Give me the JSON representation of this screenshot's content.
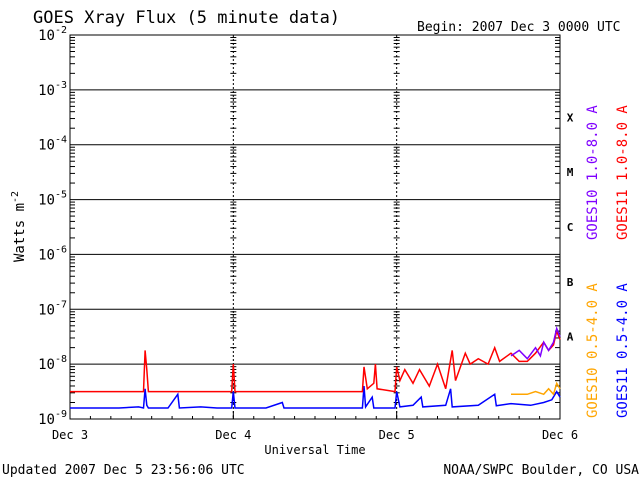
{
  "chart_data": {
    "type": "line",
    "title": "GOES Xray Flux (5 minute data)",
    "begin_label": "Begin:  2007 Dec 3 0000 UTC",
    "xlabel": "Universal Time",
    "ylabel_base": "Watts m",
    "ylabel_exp": "-2",
    "y_scale": "log",
    "ylim": [
      1e-09,
      0.01
    ],
    "xlim": [
      0,
      3
    ],
    "x_ticks": [
      {
        "value": 0,
        "label": "Dec 3"
      },
      {
        "value": 1,
        "label": "Dec 4"
      },
      {
        "value": 2,
        "label": "Dec 5"
      },
      {
        "value": 3,
        "label": "Dec 6"
      }
    ],
    "y_ticks": [
      {
        "exp": -2,
        "base": "10",
        "sup": "-2"
      },
      {
        "exp": -3,
        "base": "10",
        "sup": "-3"
      },
      {
        "exp": -4,
        "base": "10",
        "sup": "-4"
      },
      {
        "exp": -5,
        "base": "10",
        "sup": "-5"
      },
      {
        "exp": -6,
        "base": "10",
        "sup": "-6"
      },
      {
        "exp": -7,
        "base": "10",
        "sup": "-7"
      },
      {
        "exp": -8,
        "base": "10",
        "sup": "-8"
      },
      {
        "exp": -9,
        "base": "10",
        "sup": "-9"
      }
    ],
    "flare_classes": [
      {
        "label": "X",
        "exp": -3.5
      },
      {
        "label": "M",
        "exp": -4.5
      },
      {
        "label": "C",
        "exp": -5.5
      },
      {
        "label": "B",
        "exp": -6.5
      },
      {
        "label": "A",
        "exp": -7.5
      }
    ],
    "series": [
      {
        "name": "GOES11 0.5-4.0 A",
        "color": "#0000ff",
        "points": [
          [
            0,
            -8.8
          ],
          [
            0.3,
            -8.8
          ],
          [
            0.42,
            -8.78
          ],
          [
            0.45,
            -8.8
          ],
          [
            0.46,
            -8.45
          ],
          [
            0.47,
            -8.75
          ],
          [
            0.48,
            -8.8
          ],
          [
            0.6,
            -8.8
          ],
          [
            0.66,
            -8.55
          ],
          [
            0.67,
            -8.8
          ],
          [
            0.8,
            -8.78
          ],
          [
            0.9,
            -8.8
          ],
          [
            0.99,
            -8.8
          ],
          [
            1.0,
            -8.5
          ],
          [
            1.01,
            -8.8
          ],
          [
            1.2,
            -8.8
          ],
          [
            1.3,
            -8.7
          ],
          [
            1.31,
            -8.8
          ],
          [
            1.6,
            -8.8
          ],
          [
            1.79,
            -8.8
          ],
          [
            1.8,
            -8.4
          ],
          [
            1.81,
            -8.78
          ],
          [
            1.85,
            -8.6
          ],
          [
            1.86,
            -8.8
          ],
          [
            1.99,
            -8.8
          ],
          [
            2.0,
            -8.5
          ],
          [
            2.02,
            -8.78
          ],
          [
            2.1,
            -8.75
          ],
          [
            2.15,
            -8.6
          ],
          [
            2.16,
            -8.78
          ],
          [
            2.3,
            -8.75
          ],
          [
            2.33,
            -8.45
          ],
          [
            2.34,
            -8.78
          ],
          [
            2.5,
            -8.75
          ],
          [
            2.6,
            -8.55
          ],
          [
            2.61,
            -8.76
          ],
          [
            2.7,
            -8.72
          ],
          [
            2.82,
            -8.75
          ],
          [
            2.9,
            -8.7
          ],
          [
            2.95,
            -8.65
          ],
          [
            2.98,
            -8.5
          ],
          [
            3.0,
            -8.6
          ]
        ]
      },
      {
        "name": "GOES11 1.0-8.0 A",
        "color": "#ff0000",
        "points": [
          [
            0,
            -8.5
          ],
          [
            0.45,
            -8.5
          ],
          [
            0.46,
            -7.75
          ],
          [
            0.47,
            -8.1
          ],
          [
            0.48,
            -8.5
          ],
          [
            0.99,
            -8.5
          ],
          [
            1.0,
            -8.0
          ],
          [
            1.01,
            -8.5
          ],
          [
            1.79,
            -8.5
          ],
          [
            1.8,
            -8.05
          ],
          [
            1.82,
            -8.45
          ],
          [
            1.86,
            -8.35
          ],
          [
            1.87,
            -8.0
          ],
          [
            1.88,
            -8.45
          ],
          [
            1.99,
            -8.5
          ],
          [
            2.0,
            -8.05
          ],
          [
            2.02,
            -8.3
          ],
          [
            2.05,
            -8.1
          ],
          [
            2.1,
            -8.35
          ],
          [
            2.14,
            -8.1
          ],
          [
            2.2,
            -8.4
          ],
          [
            2.25,
            -8.0
          ],
          [
            2.3,
            -8.45
          ],
          [
            2.34,
            -7.75
          ],
          [
            2.36,
            -8.3
          ],
          [
            2.42,
            -7.8
          ],
          [
            2.45,
            -8.0
          ],
          [
            2.5,
            -7.9
          ],
          [
            2.56,
            -8.0
          ],
          [
            2.6,
            -7.7
          ],
          [
            2.63,
            -7.95
          ],
          [
            2.7,
            -7.8
          ],
          [
            2.75,
            -7.95
          ],
          [
            2.8,
            -7.95
          ],
          [
            2.85,
            -7.8
          ],
          [
            2.9,
            -7.6
          ],
          [
            2.93,
            -7.75
          ],
          [
            2.96,
            -7.65
          ],
          [
            2.98,
            -7.4
          ],
          [
            3.0,
            -7.55
          ]
        ]
      },
      {
        "name": "GOES10 0.5-4.0 A",
        "color": "#ffa500",
        "points": [
          [
            2.7,
            -8.55
          ],
          [
            2.75,
            -8.55
          ],
          [
            2.8,
            -8.55
          ],
          [
            2.85,
            -8.5
          ],
          [
            2.9,
            -8.55
          ],
          [
            2.93,
            -8.45
          ],
          [
            2.96,
            -8.55
          ],
          [
            2.98,
            -8.35
          ],
          [
            3.0,
            -8.45
          ]
        ]
      },
      {
        "name": "GOES10 1.0-8.0 A",
        "color": "#7f00ff",
        "points": [
          [
            2.7,
            -7.85
          ],
          [
            2.75,
            -7.75
          ],
          [
            2.8,
            -7.9
          ],
          [
            2.85,
            -7.7
          ],
          [
            2.88,
            -7.85
          ],
          [
            2.9,
            -7.6
          ],
          [
            2.93,
            -7.75
          ],
          [
            2.96,
            -7.6
          ],
          [
            2.98,
            -7.35
          ],
          [
            3.0,
            -7.5
          ]
        ]
      }
    ],
    "legend_placement": "right"
  },
  "footer": {
    "updated": "Updated 2007 Dec  5 23:56:06 UTC",
    "source": "NOAA/SWPC Boulder, CO USA"
  }
}
